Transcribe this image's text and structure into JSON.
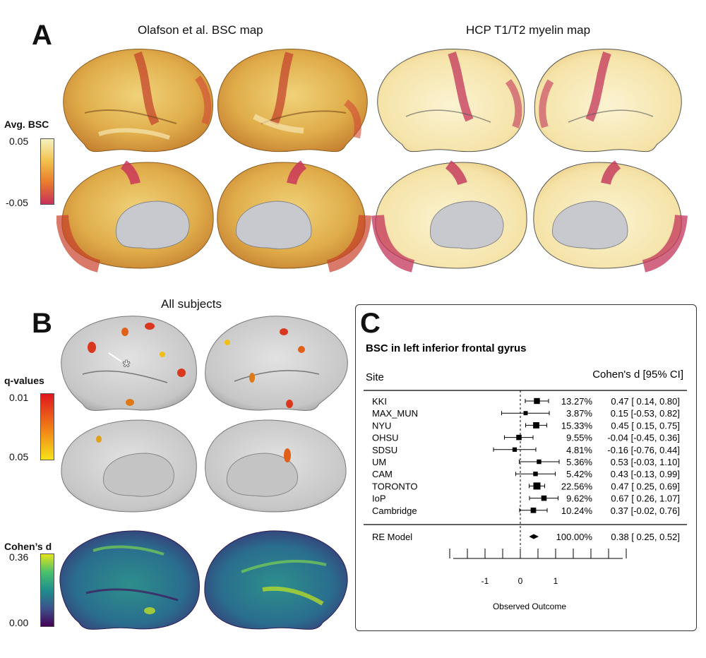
{
  "panel_a": {
    "letter": "A",
    "title_left": "Olafson et al. BSC map",
    "title_right": "HCP T1/T2 myelin map",
    "colorbar": {
      "title": "Avg. BSC",
      "max": "0.05",
      "min": "-0.05",
      "colors": [
        "#f5f2c0",
        "#f2c24e",
        "#e87b2c",
        "#c8305a"
      ]
    }
  },
  "panel_b": {
    "letter": "B",
    "title": "All subjects",
    "q_colorbar": {
      "title": "q-values",
      "top": "0.01",
      "bottom": "0.05",
      "colors": [
        "#e0161e",
        "#f07a18",
        "#f7e21a"
      ]
    },
    "d_colorbar": {
      "title": "Cohen’s d",
      "top": "0.36",
      "bottom": "0.00",
      "colors": [
        "#e4e419",
        "#4ac16d",
        "#1f8e8c",
        "#3b528b",
        "#440154"
      ]
    },
    "marker": "*"
  },
  "panel_c": {
    "letter": "C",
    "chart_data": {
      "type": "forest",
      "title": "BSC in left inferior frontal gyrus",
      "col_site": "Site",
      "col_effect": "Cohen's d [95% CI]",
      "xlabel": "Observed Outcome",
      "xlim": [
        -2,
        3
      ],
      "ticks": [
        -2,
        -1.5,
        -1,
        -0.5,
        0,
        0.5,
        1,
        1.5,
        2,
        2.5,
        3
      ],
      "tick_labels": [
        {
          "value": -1,
          "label": "-1"
        },
        {
          "value": 0,
          "label": "0"
        },
        {
          "value": 1,
          "label": "1"
        }
      ],
      "studies": [
        {
          "site": "KKI",
          "weight": "13.27%",
          "d": 0.47,
          "lo": 0.14,
          "hi": 0.8,
          "ci": "0.47 [ 0.14, 0.80]"
        },
        {
          "site": "MAX_MUN",
          "weight": "3.87%",
          "d": 0.15,
          "lo": -0.53,
          "hi": 0.82,
          "ci": "0.15 [-0.53, 0.82]"
        },
        {
          "site": "NYU",
          "weight": "15.33%",
          "d": 0.45,
          "lo": 0.15,
          "hi": 0.75,
          "ci": "0.45 [ 0.15, 0.75]"
        },
        {
          "site": "OHSU",
          "weight": "9.55%",
          "d": -0.04,
          "lo": -0.45,
          "hi": 0.36,
          "ci": "-0.04 [-0.45, 0.36]"
        },
        {
          "site": "SDSU",
          "weight": "4.81%",
          "d": -0.16,
          "lo": -0.76,
          "hi": 0.44,
          "ci": "-0.16 [-0.76, 0.44]"
        },
        {
          "site": "UM",
          "weight": "5.36%",
          "d": 0.53,
          "lo": -0.03,
          "hi": 1.1,
          "ci": "0.53 [-0.03, 1.10]"
        },
        {
          "site": "CAM",
          "weight": "5.42%",
          "d": 0.43,
          "lo": -0.13,
          "hi": 0.99,
          "ci": "0.43 [-0.13, 0.99]"
        },
        {
          "site": "TORONTO",
          "weight": "22.56%",
          "d": 0.47,
          "lo": 0.25,
          "hi": 0.69,
          "ci": "0.47 [ 0.25, 0.69]"
        },
        {
          "site": "IoP",
          "weight": "9.62%",
          "d": 0.67,
          "lo": 0.26,
          "hi": 1.07,
          "ci": "0.67 [ 0.26, 1.07]"
        },
        {
          "site": "Cambridge",
          "weight": "10.24%",
          "d": 0.37,
          "lo": -0.02,
          "hi": 0.76,
          "ci": "0.37 [-0.02, 0.76]"
        }
      ],
      "summary": {
        "label": "RE Model",
        "weight": "100.00%",
        "d": 0.38,
        "lo": 0.25,
        "hi": 0.52,
        "ci": "0.38 [ 0.25, 0.52]"
      }
    }
  }
}
